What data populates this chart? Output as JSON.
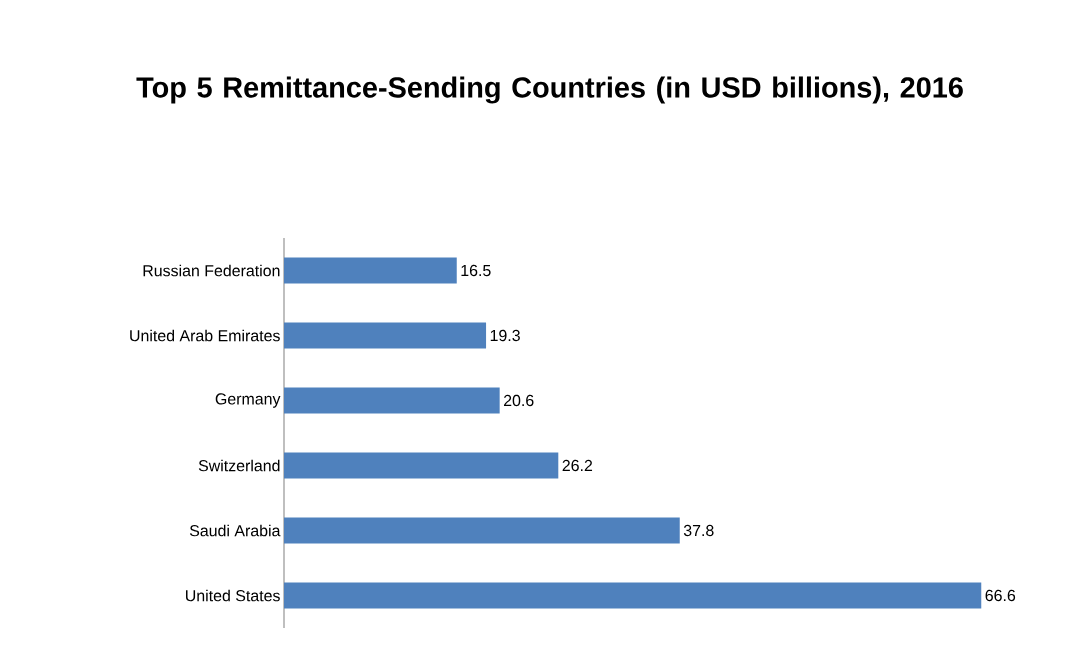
{
  "chart_data": {
    "type": "bar",
    "orientation": "horizontal",
    "title": "Top 5 Remittance-Sending Countries (in USD billions), 2016",
    "categories": [
      "Russian Federation",
      "United Arab Emirates",
      "Germany",
      "Switzerland",
      "Saudi Arabia",
      "United States"
    ],
    "values": [
      16.5,
      19.3,
      20.6,
      26.2,
      37.8,
      66.6
    ],
    "color": "#4f81bd",
    "data_labels": true
  }
}
